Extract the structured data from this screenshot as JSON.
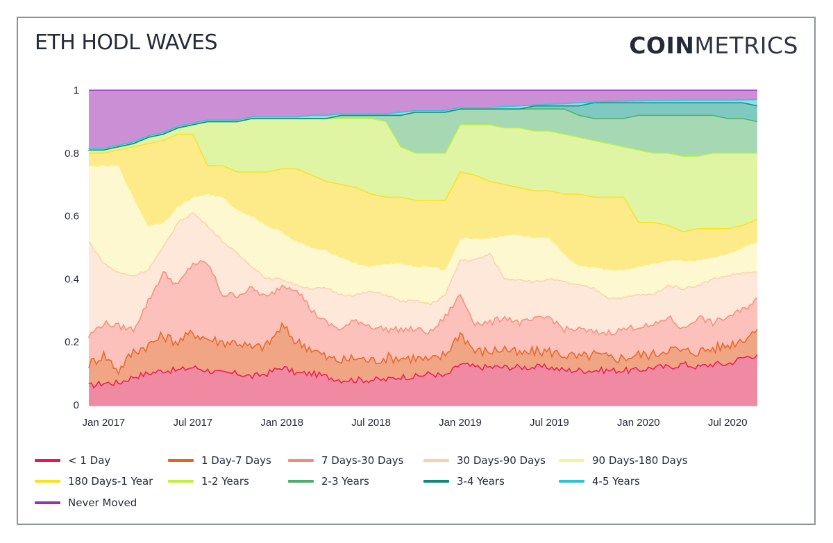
{
  "header": {
    "title": "ETH HODL WAVES",
    "logo_bold": "COIN",
    "logo_light": "METRICS"
  },
  "chart_data": {
    "type": "area",
    "stacked": true,
    "title": "ETH HODL WAVES",
    "xlabel": "",
    "ylabel": "",
    "ylim": [
      0,
      1
    ],
    "yticks": [
      0,
      0.2,
      0.4,
      0.6,
      0.8,
      1
    ],
    "ytick_labels": [
      "0",
      "0.2",
      "0.4",
      "0.6",
      "0.8",
      "1"
    ],
    "xtick_labels": [
      "Jan 2017",
      "Jul 2017",
      "Jan 2018",
      "Jul 2018",
      "Jan 2019",
      "Jul 2019",
      "Jan 2020",
      "Jul 2020"
    ],
    "xtick_positions": [
      1,
      7,
      13,
      19,
      25,
      31,
      37,
      43
    ],
    "grid": true,
    "legend_position": "bottom",
    "x": [
      "Dec 2016",
      "Jan 2017",
      "Feb 2017",
      "Mar 2017",
      "Apr 2017",
      "May 2017",
      "Jun 2017",
      "Jul 2017",
      "Aug 2017",
      "Sep 2017",
      "Oct 2017",
      "Nov 2017",
      "Dec 2017",
      "Jan 2018",
      "Feb 2018",
      "Mar 2018",
      "Apr 2018",
      "May 2018",
      "Jun 2018",
      "Jul 2018",
      "Aug 2018",
      "Sep 2018",
      "Oct 2018",
      "Nov 2018",
      "Dec 2018",
      "Jan 2019",
      "Feb 2019",
      "Mar 2019",
      "Apr 2019",
      "May 2019",
      "Jun 2019",
      "Jul 2019",
      "Aug 2019",
      "Sep 2019",
      "Oct 2019",
      "Nov 2019",
      "Dec 2019",
      "Jan 2020",
      "Feb 2020",
      "Mar 2020",
      "Apr 2020",
      "May 2020",
      "Jun 2020",
      "Jul 2020",
      "Aug 2020",
      "Sep 2020"
    ],
    "note": "Values are cumulative stacked tops of each band (fraction of supply), read approximately from the chart.",
    "series": [
      {
        "name": "< 1 Day",
        "color": "#e8174f",
        "fill": "#f08aa3",
        "cumulative": [
          0.06,
          0.07,
          0.07,
          0.09,
          0.1,
          0.11,
          0.11,
          0.12,
          0.11,
          0.1,
          0.1,
          0.09,
          0.1,
          0.12,
          0.1,
          0.1,
          0.09,
          0.08,
          0.08,
          0.08,
          0.08,
          0.09,
          0.09,
          0.1,
          0.09,
          0.13,
          0.12,
          0.12,
          0.12,
          0.12,
          0.12,
          0.12,
          0.11,
          0.11,
          0.11,
          0.11,
          0.11,
          0.11,
          0.12,
          0.12,
          0.13,
          0.12,
          0.13,
          0.13,
          0.15,
          0.16
        ]
      },
      {
        "name": "1 Day-7 Days",
        "color": "#e8621f",
        "fill": "#f0a585",
        "cumulative": [
          0.13,
          0.16,
          0.11,
          0.17,
          0.19,
          0.22,
          0.2,
          0.23,
          0.21,
          0.2,
          0.2,
          0.18,
          0.19,
          0.25,
          0.2,
          0.18,
          0.15,
          0.14,
          0.15,
          0.14,
          0.15,
          0.15,
          0.15,
          0.14,
          0.16,
          0.23,
          0.17,
          0.17,
          0.18,
          0.16,
          0.17,
          0.17,
          0.16,
          0.15,
          0.16,
          0.15,
          0.15,
          0.16,
          0.16,
          0.18,
          0.17,
          0.17,
          0.18,
          0.19,
          0.21,
          0.24
        ]
      },
      {
        "name": "7 Days-30 Days",
        "color": "#f58a7a",
        "fill": "#fdc1bb",
        "cumulative": [
          0.22,
          0.26,
          0.25,
          0.24,
          0.33,
          0.42,
          0.38,
          0.45,
          0.45,
          0.35,
          0.35,
          0.37,
          0.34,
          0.38,
          0.37,
          0.3,
          0.26,
          0.24,
          0.27,
          0.25,
          0.24,
          0.24,
          0.24,
          0.23,
          0.28,
          0.35,
          0.26,
          0.26,
          0.28,
          0.26,
          0.27,
          0.28,
          0.24,
          0.24,
          0.23,
          0.23,
          0.24,
          0.25,
          0.25,
          0.28,
          0.24,
          0.28,
          0.26,
          0.28,
          0.3,
          0.34
        ]
      },
      {
        "name": "30 Days-90 Days",
        "color": "#f8c39a",
        "fill": "#fde8d9",
        "cumulative": [
          0.52,
          0.45,
          0.42,
          0.41,
          0.43,
          0.5,
          0.58,
          0.61,
          0.57,
          0.52,
          0.48,
          0.44,
          0.4,
          0.4,
          0.38,
          0.37,
          0.37,
          0.35,
          0.35,
          0.36,
          0.35,
          0.33,
          0.33,
          0.32,
          0.35,
          0.46,
          0.46,
          0.48,
          0.4,
          0.4,
          0.39,
          0.4,
          0.39,
          0.38,
          0.37,
          0.34,
          0.34,
          0.35,
          0.35,
          0.38,
          0.37,
          0.38,
          0.4,
          0.41,
          0.42,
          0.42
        ]
      },
      {
        "name": "90 Days-180 Days",
        "color": "#fbeb84",
        "fill": "#fdf8d0",
        "cumulative": [
          0.76,
          0.76,
          0.76,
          0.66,
          0.57,
          0.58,
          0.63,
          0.66,
          0.67,
          0.66,
          0.62,
          0.6,
          0.57,
          0.55,
          0.52,
          0.5,
          0.49,
          0.47,
          0.45,
          0.44,
          0.45,
          0.45,
          0.44,
          0.44,
          0.43,
          0.53,
          0.53,
          0.53,
          0.54,
          0.54,
          0.53,
          0.53,
          0.48,
          0.44,
          0.44,
          0.43,
          0.43,
          0.44,
          0.45,
          0.46,
          0.46,
          0.46,
          0.47,
          0.48,
          0.5,
          0.52
        ]
      },
      {
        "name": "180 Days-1 Year",
        "color": "#fde01a",
        "fill": "#fdeb8a",
        "cumulative": [
          0.8,
          0.8,
          0.81,
          0.82,
          0.83,
          0.84,
          0.86,
          0.86,
          0.76,
          0.76,
          0.74,
          0.74,
          0.74,
          0.75,
          0.75,
          0.73,
          0.71,
          0.7,
          0.69,
          0.67,
          0.66,
          0.66,
          0.65,
          0.65,
          0.65,
          0.74,
          0.73,
          0.71,
          0.7,
          0.69,
          0.68,
          0.68,
          0.67,
          0.67,
          0.66,
          0.66,
          0.66,
          0.58,
          0.58,
          0.57,
          0.55,
          0.56,
          0.56,
          0.56,
          0.57,
          0.59
        ]
      },
      {
        "name": "1-2 Years",
        "color": "#bdf041",
        "fill": "#dff5a3",
        "cumulative": [
          0.81,
          0.81,
          0.82,
          0.83,
          0.85,
          0.86,
          0.88,
          0.89,
          0.9,
          0.9,
          0.9,
          0.91,
          0.91,
          0.91,
          0.91,
          0.91,
          0.91,
          0.91,
          0.91,
          0.91,
          0.9,
          0.82,
          0.8,
          0.8,
          0.8,
          0.89,
          0.89,
          0.89,
          0.88,
          0.88,
          0.87,
          0.87,
          0.86,
          0.85,
          0.84,
          0.83,
          0.82,
          0.81,
          0.8,
          0.8,
          0.79,
          0.79,
          0.8,
          0.8,
          0.8,
          0.8
        ]
      },
      {
        "name": "2-3 Years",
        "color": "#4caf68",
        "fill": "#a5d8b3",
        "cumulative": [
          0.81,
          0.81,
          0.82,
          0.83,
          0.85,
          0.86,
          0.88,
          0.89,
          0.9,
          0.9,
          0.9,
          0.91,
          0.91,
          0.91,
          0.91,
          0.91,
          0.91,
          0.92,
          0.92,
          0.92,
          0.92,
          0.92,
          0.93,
          0.93,
          0.93,
          0.94,
          0.94,
          0.94,
          0.94,
          0.94,
          0.94,
          0.94,
          0.94,
          0.92,
          0.91,
          0.91,
          0.91,
          0.92,
          0.92,
          0.92,
          0.92,
          0.92,
          0.92,
          0.91,
          0.91,
          0.9
        ]
      },
      {
        "name": "3-4 Years",
        "color": "#0e8a79",
        "fill": "#7fc9c0",
        "cumulative": [
          0.81,
          0.81,
          0.82,
          0.83,
          0.85,
          0.86,
          0.88,
          0.89,
          0.9,
          0.9,
          0.9,
          0.91,
          0.91,
          0.91,
          0.91,
          0.91,
          0.91,
          0.92,
          0.92,
          0.92,
          0.92,
          0.92,
          0.93,
          0.93,
          0.93,
          0.94,
          0.94,
          0.94,
          0.94,
          0.94,
          0.95,
          0.95,
          0.95,
          0.95,
          0.96,
          0.96,
          0.96,
          0.96,
          0.96,
          0.96,
          0.96,
          0.96,
          0.96,
          0.96,
          0.96,
          0.95
        ]
      },
      {
        "name": "4-5 Years",
        "color": "#2bc3dc",
        "fill": "#8fdfeb",
        "cumulative": [
          0.815,
          0.815,
          0.825,
          0.835,
          0.855,
          0.865,
          0.885,
          0.895,
          0.905,
          0.905,
          0.905,
          0.915,
          0.915,
          0.915,
          0.915,
          0.92,
          0.92,
          0.925,
          0.925,
          0.925,
          0.925,
          0.93,
          0.935,
          0.935,
          0.935,
          0.945,
          0.945,
          0.945,
          0.948,
          0.95,
          0.953,
          0.955,
          0.957,
          0.96,
          0.962,
          0.964,
          0.965,
          0.966,
          0.967,
          0.967,
          0.968,
          0.968,
          0.968,
          0.968,
          0.969,
          0.97
        ]
      },
      {
        "name": "Never Moved",
        "color": "#9c2cb3",
        "fill": "#cb8fd6",
        "cumulative": [
          1,
          1,
          1,
          1,
          1,
          1,
          1,
          1,
          1,
          1,
          1,
          1,
          1,
          1,
          1,
          1,
          1,
          1,
          1,
          1,
          1,
          1,
          1,
          1,
          1,
          1,
          1,
          1,
          1,
          1,
          1,
          1,
          1,
          1,
          1,
          1,
          1,
          1,
          1,
          1,
          1,
          1,
          1,
          1,
          1,
          1
        ]
      }
    ]
  },
  "legend": [
    {
      "label": "< 1 Day",
      "color": "#e8174f"
    },
    {
      "label": "1 Day-7 Days",
      "color": "#e8621f"
    },
    {
      "label": "7 Days-30 Days",
      "color": "#f58a7a"
    },
    {
      "label": "30 Days-90 Days",
      "color": "#fbcfa8"
    },
    {
      "label": "90 Days-180 Days",
      "color": "#fbf198"
    },
    {
      "label": "180 Days-1 Year",
      "color": "#fde01a"
    },
    {
      "label": "1-2 Years",
      "color": "#bdf041"
    },
    {
      "label": "2-3 Years",
      "color": "#4caf68"
    },
    {
      "label": "3-4 Years",
      "color": "#0e8a79"
    },
    {
      "label": "4-5 Years",
      "color": "#2bc3dc"
    },
    {
      "label": "Never Moved",
      "color": "#9c2cb3"
    }
  ]
}
